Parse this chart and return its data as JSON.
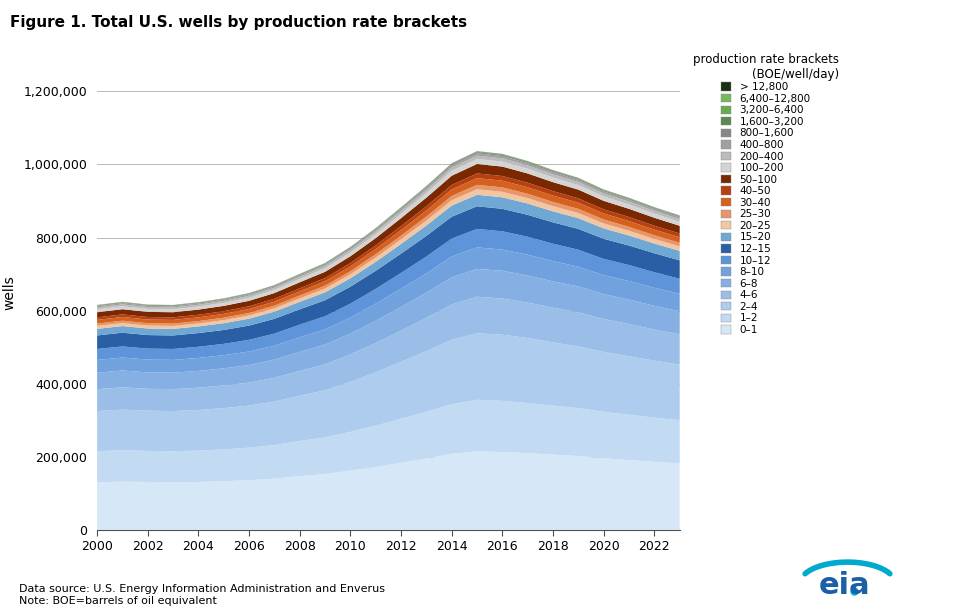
{
  "title": "Figure 1. Total U.S. wells by production rate brackets",
  "ylabel": "wells",
  "source": "Data source: U.S. Energy Information Administration and Enverus",
  "note": "Note: BOE=barrels of oil equivalent",
  "legend_title": "production rate brackets\n(BOE/well/day)",
  "years": [
    2000,
    2001,
    2002,
    2003,
    2004,
    2005,
    2006,
    2007,
    2008,
    2009,
    2010,
    2011,
    2012,
    2013,
    2014,
    2015,
    2016,
    2017,
    2018,
    2019,
    2020,
    2021,
    2022,
    2023
  ],
  "brackets": [
    "0–1",
    "1–2",
    "2–4",
    "4–6",
    "6–8",
    "8–10",
    "10–12",
    "12–15",
    "15–20",
    "20–25",
    "25–30",
    "30–40",
    "40–50",
    "50–100",
    "100–200",
    "200–400",
    "400–800",
    "800–1,600",
    "1,600–3,200",
    "3,200–6,400",
    "6,400–12,800",
    "> 12,800"
  ],
  "colors": [
    "#d6e8f7",
    "#c2daf2",
    "#aecced",
    "#9abee8",
    "#86b0e3",
    "#72a2de",
    "#5e94d9",
    "#2a5fa5",
    "#6fa8d4",
    "#f2c6a0",
    "#e8956a",
    "#d4611e",
    "#b84010",
    "#7a2800",
    "#d4d4d4",
    "#bbbbbb",
    "#a0a0a0",
    "#888888",
    "#5a8a50",
    "#6aaa50",
    "#7ab860",
    "#1a3015"
  ],
  "data": {
    "0–1": [
      130000,
      132000,
      131000,
      130000,
      131000,
      133000,
      136000,
      140000,
      147000,
      153000,
      162000,
      172000,
      184000,
      195000,
      208000,
      215000,
      213000,
      210000,
      206000,
      202000,
      196000,
      191000,
      186000,
      182000
    ],
    "1–2": [
      85000,
      86000,
      85000,
      85000,
      86000,
      87000,
      89000,
      92000,
      96000,
      100000,
      106000,
      113000,
      120000,
      128000,
      136000,
      141000,
      140000,
      137000,
      134000,
      131000,
      127000,
      124000,
      121000,
      118000
    ],
    "2–4": [
      110000,
      111000,
      110000,
      110000,
      111000,
      113000,
      115000,
      119000,
      124000,
      129000,
      137000,
      146000,
      156000,
      166000,
      176000,
      182000,
      181000,
      178000,
      173000,
      169000,
      164000,
      160000,
      156000,
      152000
    ],
    "4–6": [
      60000,
      61000,
      60000,
      60000,
      61000,
      62000,
      63000,
      65000,
      68000,
      71000,
      75000,
      80000,
      85000,
      91000,
      97000,
      100000,
      99000,
      97000,
      95000,
      93000,
      90000,
      88000,
      85000,
      83000
    ],
    "6–8": [
      45000,
      46000,
      45000,
      45000,
      46000,
      47000,
      48000,
      50000,
      52000,
      54000,
      57000,
      61000,
      65000,
      69000,
      74000,
      76000,
      76000,
      74000,
      72000,
      71000,
      68000,
      67000,
      65000,
      63000
    ],
    "8–10": [
      35000,
      35500,
      35000,
      35000,
      35500,
      36000,
      37000,
      38000,
      40000,
      41500,
      44000,
      47000,
      50000,
      53000,
      57000,
      59000,
      58000,
      57000,
      55500,
      54000,
      52000,
      51000,
      49500,
      48000
    ],
    "10–12": [
      30000,
      30500,
      30000,
      30000,
      30500,
      31000,
      32000,
      33000,
      34500,
      36000,
      38000,
      40500,
      43000,
      46000,
      49000,
      50500,
      50000,
      49000,
      47500,
      46500,
      44500,
      43500,
      42500,
      41000
    ],
    "12–15": [
      37000,
      37500,
      37000,
      37000,
      37500,
      38000,
      39000,
      40500,
      42000,
      44000,
      46500,
      49500,
      53000,
      56500,
      60000,
      62000,
      61500,
      60000,
      58500,
      57000,
      55000,
      53500,
      52000,
      50500
    ],
    "15–20": [
      18000,
      18200,
      18000,
      18000,
      18200,
      18500,
      19000,
      19700,
      20500,
      21500,
      23000,
      24500,
      26500,
      28500,
      30500,
      31500,
      31500,
      31000,
      30000,
      29500,
      28500,
      27500,
      26500,
      26000
    ],
    "20–25": [
      8000,
      8100,
      8000,
      8000,
      8100,
      8300,
      8600,
      9000,
      9500,
      10000,
      10700,
      11500,
      12500,
      13500,
      14500,
      15000,
      15000,
      14700,
      14300,
      14000,
      13500,
      13000,
      12500,
      12200
    ],
    "25–30": [
      6500,
      6600,
      6500,
      6500,
      6600,
      6800,
      7000,
      7300,
      7700,
      8100,
      8700,
      9400,
      10200,
      11000,
      11800,
      12200,
      12200,
      11900,
      11600,
      11300,
      10900,
      10600,
      10200,
      9900
    ],
    "30–40": [
      10000,
      10100,
      10000,
      10000,
      10100,
      10400,
      10700,
      11100,
      11700,
      12300,
      13200,
      14200,
      15400,
      16600,
      17800,
      18400,
      18300,
      17900,
      17400,
      17000,
      16400,
      15900,
      15400,
      15000
    ],
    "40–50": [
      7000,
      7100,
      7000,
      7000,
      7100,
      7300,
      7500,
      7800,
      8200,
      8600,
      9200,
      9900,
      10800,
      11600,
      12400,
      12800,
      12800,
      12500,
      12100,
      11800,
      11400,
      11100,
      10700,
      10400
    ],
    "50–100": [
      14000,
      14200,
      14000,
      14000,
      14200,
      14600,
      15000,
      15600,
      16400,
      17200,
      18500,
      19900,
      21700,
      23400,
      25100,
      25900,
      25800,
      25200,
      24500,
      23900,
      23100,
      22400,
      21700,
      21100
    ],
    "100–200": [
      8000,
      8100,
      8000,
      8000,
      8100,
      8300,
      8500,
      8800,
      9200,
      9600,
      10200,
      10900,
      11800,
      12600,
      13400,
      13800,
      13700,
      13400,
      13000,
      12700,
      12200,
      11900,
      11500,
      11200
    ],
    "200–400": [
      5000,
      5050,
      5000,
      5000,
      5050,
      5150,
      5300,
      5500,
      5800,
      6100,
      6500,
      6900,
      7500,
      8100,
      8700,
      9000,
      8900,
      8700,
      8500,
      8300,
      8000,
      7700,
      7400,
      7200
    ],
    "400–800": [
      3500,
      3540,
      3500,
      3500,
      3540,
      3620,
      3720,
      3860,
      4060,
      4270,
      4560,
      4900,
      5300,
      5710,
      6110,
      6300,
      6230,
      6100,
      5920,
      5770,
      5540,
      5360,
      5170,
      5000
    ],
    "800–1,600": [
      2000,
      2020,
      2000,
      2000,
      2020,
      2070,
      2130,
      2210,
      2320,
      2440,
      2600,
      2800,
      3030,
      3260,
      3490,
      3600,
      3560,
      3480,
      3380,
      3290,
      3160,
      3060,
      2950,
      2860
    ],
    "1,600–3,200": [
      900,
      910,
      900,
      900,
      910,
      930,
      960,
      990,
      1040,
      1090,
      1160,
      1250,
      1350,
      1460,
      1560,
      1610,
      1590,
      1560,
      1510,
      1470,
      1420,
      1370,
      1320,
      1280
    ],
    "3,200–6,400": [
      350,
      355,
      350,
      350,
      355,
      365,
      375,
      390,
      410,
      430,
      460,
      490,
      530,
      570,
      610,
      630,
      620,
      610,
      590,
      575,
      555,
      535,
      515,
      500
    ],
    "6,400–12,800": [
      130,
      132,
      130,
      130,
      132,
      135,
      140,
      145,
      153,
      161,
      172,
      184,
      200,
      215,
      230,
      238,
      235,
      230,
      223,
      217,
      209,
      202,
      195,
      189
    ],
    "> 12,800": [
      50,
      51,
      50,
      50,
      51,
      52,
      54,
      56,
      59,
      62,
      66,
      71,
      77,
      83,
      89,
      92,
      91,
      89,
      86,
      84,
      81,
      78,
      75,
      73
    ]
  },
  "ylim": [
    0,
    1300000
  ],
  "yticks": [
    0,
    200000,
    400000,
    600000,
    800000,
    1000000,
    1200000
  ],
  "xticks": [
    2000,
    2002,
    2004,
    2006,
    2008,
    2010,
    2012,
    2014,
    2016,
    2018,
    2020,
    2022
  ]
}
